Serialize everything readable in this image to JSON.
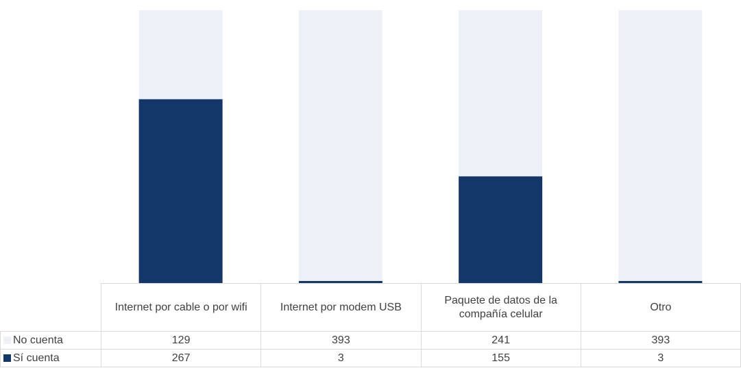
{
  "chart_data": {
    "type": "bar",
    "stacked": true,
    "percent_stacked": true,
    "data_table": true,
    "categories": [
      "Internet por cable o por wifi",
      "Internet por modem USB",
      "Paquete de datos de la compañía celular",
      "Otro"
    ],
    "series": [
      {
        "name": "No cuenta",
        "color": "#edf0f6",
        "values": [
          129,
          393,
          241,
          393
        ]
      },
      {
        "name": "Sí cuenta",
        "color": "#14376a",
        "values": [
          267,
          3,
          155,
          3
        ]
      }
    ]
  }
}
